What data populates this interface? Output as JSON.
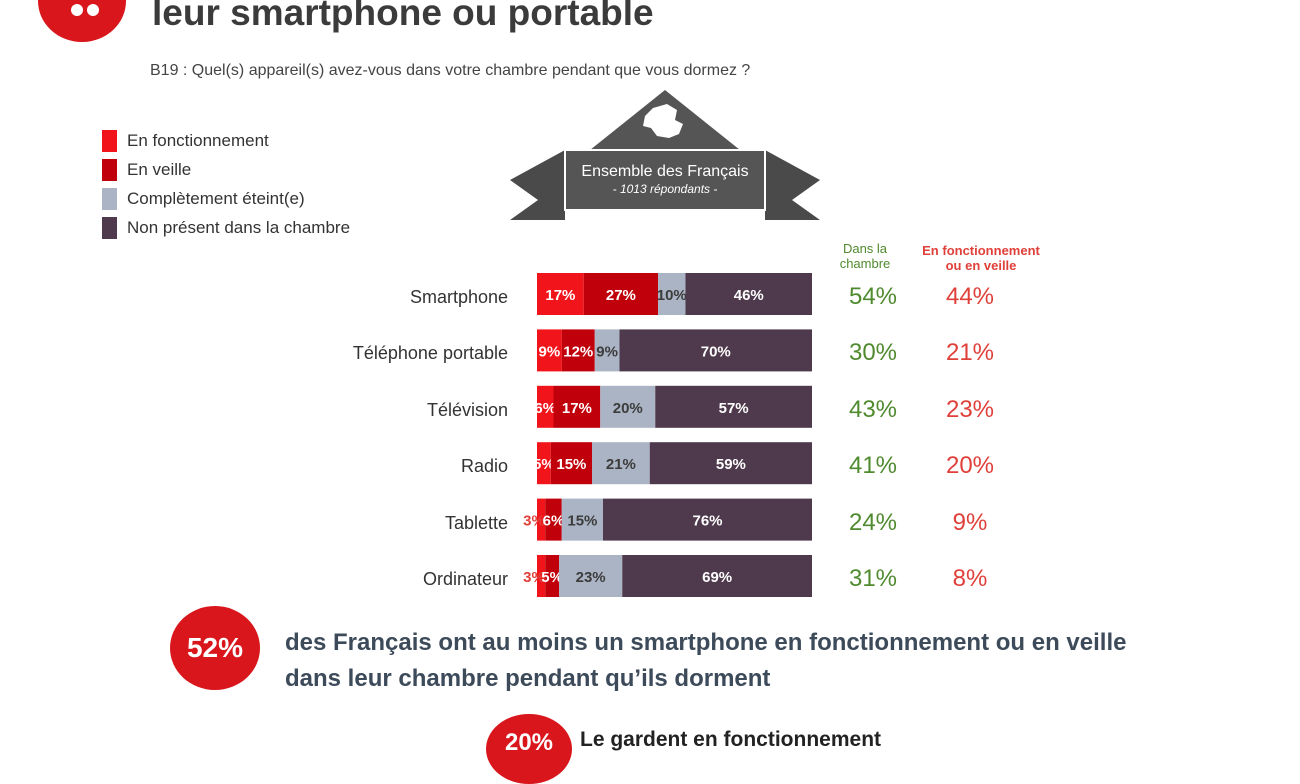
{
  "header": {
    "title": "leur smartphone ou portable",
    "question": "B19 : Quel(s) appareil(s) avez-vous dans votre chambre pendant que vous dormez ?"
  },
  "banner": {
    "title": "Ensemble des Français",
    "subtitle": "- 1013 répondants -"
  },
  "columns": {
    "in_room": "Dans la\nchambre",
    "on_or_standby": "En fonctionnement\nou en veille"
  },
  "colors": {
    "on": "#f2141b",
    "standby": "#c0000a",
    "off": "#aab4c4",
    "absent": "#4e3a4c",
    "green": "#4f8a2e",
    "red": "#e0403a"
  },
  "chart_data": {
    "type": "bar",
    "orientation": "horizontal",
    "stacked": true,
    "categories": [
      "Smartphone",
      "Téléphone portable",
      "Télévision",
      "Radio",
      "Tablette",
      "Ordinateur"
    ],
    "series": [
      {
        "name": "En fonctionnement",
        "values": [
          17,
          9,
          6,
          5,
          3,
          3
        ],
        "labels": [
          "17%",
          "9%",
          "6%",
          "5%",
          "3%",
          "3%"
        ]
      },
      {
        "name": "En veille",
        "values": [
          27,
          12,
          17,
          15,
          6,
          5
        ],
        "labels": [
          "27%",
          "12%",
          "17%",
          "15%",
          "6%",
          "5%"
        ]
      },
      {
        "name": "Complètement éteint(e)",
        "values": [
          10,
          9,
          20,
          21,
          15,
          23
        ],
        "labels": [
          "10%",
          "9%",
          "20%",
          "21%",
          "15%",
          "23%"
        ]
      },
      {
        "name": "Non présent dans la chambre",
        "values": [
          46,
          70,
          57,
          59,
          76,
          69
        ],
        "labels": [
          "46%",
          "70%",
          "57%",
          "59%",
          "76%",
          "69%"
        ]
      }
    ],
    "in_room": [
      "54%",
      "30%",
      "43%",
      "41%",
      "24%",
      "31%"
    ],
    "on_or_standby": [
      "44%",
      "21%",
      "23%",
      "20%",
      "9%",
      "8%"
    ],
    "xlim": [
      0,
      100
    ]
  },
  "callout": {
    "value": "52%",
    "line1": "des Français ont au moins un smartphone en fonctionnement ou en veille",
    "line2": "dans leur chambre pendant qu’ils dorment"
  },
  "sub_callout": {
    "value": "20%",
    "text": "Le gardent en fonctionnement"
  }
}
